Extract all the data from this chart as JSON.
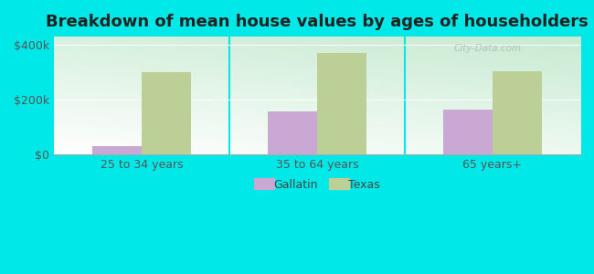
{
  "title": "Breakdown of mean house values by ages of householders",
  "categories": [
    "25 to 34 years",
    "35 to 64 years",
    "65 years+"
  ],
  "gallatin_values": [
    30000,
    155000,
    162000
  ],
  "texas_values": [
    300000,
    370000,
    302000
  ],
  "gallatin_color": "#c9a8d4",
  "texas_color": "#bccf96",
  "background_color": "#00e8e8",
  "plot_bg_color_topleft": "#c8e8c8",
  "plot_bg_color_bottomright": "#f0fff0",
  "yticks": [
    0,
    200000,
    400000
  ],
  "ytick_labels": [
    "$0",
    "$200k",
    "$400k"
  ],
  "ylim": [
    0,
    430000
  ],
  "legend_gallatin": "Gallatin",
  "legend_texas": "Texas",
  "bar_width": 0.28,
  "title_fontsize": 13,
  "tick_fontsize": 9,
  "legend_fontsize": 9,
  "watermark": "City-Data.com"
}
